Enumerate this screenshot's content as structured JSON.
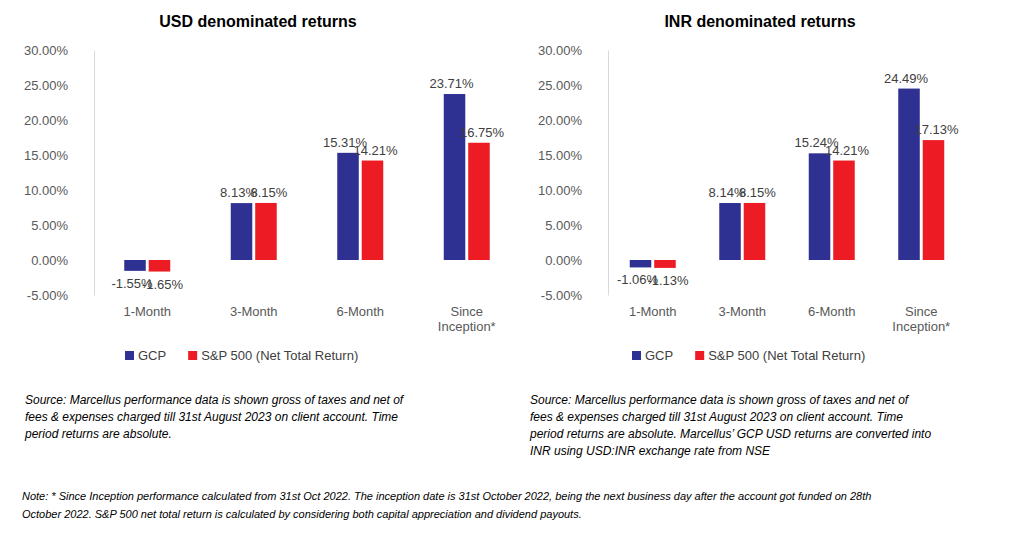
{
  "chart_data": [
    {
      "type": "bar",
      "title": "USD denominated returns",
      "categories": [
        "1-Month",
        "3-Month",
        "6-Month",
        "Since Inception*"
      ],
      "series": [
        {
          "name": "GCP",
          "color": "#2e3192",
          "values": [
            -1.55,
            8.13,
            15.31,
            23.71
          ],
          "value_labels": [
            "-1.55%",
            "8.13%",
            "15.31%",
            "23.71%"
          ]
        },
        {
          "name": "S&P 500 (Net Total Return)",
          "color": "#ed1c24",
          "values": [
            -1.65,
            8.15,
            14.21,
            16.75
          ],
          "value_labels": [
            "-1.65%",
            "8.15%",
            "14.21%",
            "16.75%"
          ]
        }
      ],
      "ylim": [
        -5,
        30
      ],
      "yticks": [
        {
          "value": -5,
          "label": "-5.00%"
        },
        {
          "value": 0,
          "label": "0.00%"
        },
        {
          "value": 5,
          "label": "5.00%"
        },
        {
          "value": 10,
          "label": "10.00%"
        },
        {
          "value": 15,
          "label": "15.00%"
        },
        {
          "value": 20,
          "label": "20.00%"
        },
        {
          "value": 25,
          "label": "25.00%"
        },
        {
          "value": 30,
          "label": "30.00%"
        }
      ],
      "grid": false,
      "legend": "bottom",
      "data_labels": true,
      "annotations": [
        "Source: Marcellus performance data is shown gross of taxes and net of",
        "fees & expenses charged till 31st August 2023 on client account. Time",
        "period returns are absolute."
      ]
    },
    {
      "type": "bar",
      "title": "INR denominated returns",
      "categories": [
        "1-Month",
        "3-Month",
        "6-Month",
        "Since Inception*"
      ],
      "series": [
        {
          "name": "GCP",
          "color": "#2e3192",
          "values": [
            -1.06,
            8.14,
            15.24,
            24.49
          ],
          "value_labels": [
            "-1.06%",
            "8.14%",
            "15.24%",
            "24.49%"
          ]
        },
        {
          "name": "S&P 500 (Net Total Return)",
          "color": "#ed1c24",
          "values": [
            -1.13,
            8.15,
            14.21,
            17.13
          ],
          "value_labels": [
            "-1.13%",
            "8.15%",
            "14.21%",
            "17.13%"
          ]
        }
      ],
      "ylim": [
        -5,
        30
      ],
      "yticks": [
        {
          "value": -5,
          "label": "-5.00%"
        },
        {
          "value": 0,
          "label": "0.00%"
        },
        {
          "value": 5,
          "label": "5.00%"
        },
        {
          "value": 10,
          "label": "10.00%"
        },
        {
          "value": 15,
          "label": "15.00%"
        },
        {
          "value": 20,
          "label": "20.00%"
        },
        {
          "value": 25,
          "label": "25.00%"
        },
        {
          "value": 30,
          "label": "30.00%"
        }
      ],
      "grid": false,
      "legend": "bottom",
      "data_labels": true,
      "annotations": [
        "Source: Marcellus performance data is shown gross of taxes and net of",
        "fees & expenses charged till 31st August 2023 on client account. Time",
        "period returns are absolute. Marcellus’ GCP USD returns are converted into",
        "INR using USD:INR exchange rate from NSE"
      ]
    }
  ],
  "footnote": [
    "Note: * Since Inception performance calculated from 31st Oct 2022. The  inception date is 31st October 2022, being the next business day after the account got funded on 28th",
    "October 2022. S&P 500 net total return is calculated by considering both capital appreciation and dividend payouts."
  ]
}
